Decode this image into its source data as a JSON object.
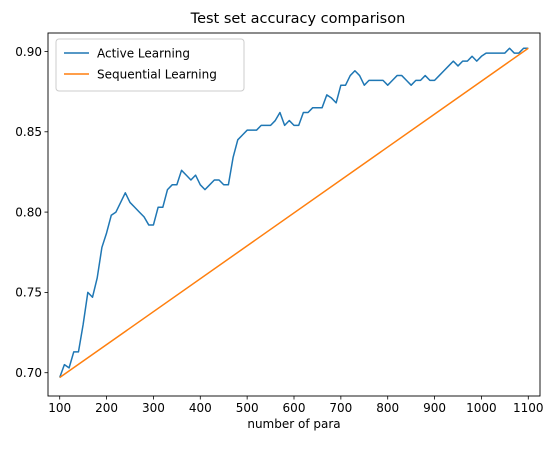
{
  "chart_data": {
    "type": "line",
    "title": "Test set accuracy comparison",
    "xlabel": "number of para",
    "ylabel": "",
    "xlim": [
      75,
      1125
    ],
    "ylim": [
      0.6855,
      0.9115
    ],
    "xticks": [
      100,
      200,
      300,
      400,
      500,
      600,
      700,
      800,
      900,
      1000,
      1100
    ],
    "yticks": [
      0.7,
      0.75,
      0.8,
      0.85,
      0.9
    ],
    "ytick_labels": [
      "0.70",
      "0.75",
      "0.80",
      "0.85",
      "0.90"
    ],
    "grid": false,
    "legend_position": "top-left",
    "series": [
      {
        "name": "Active Learning",
        "color": "#1f77b4",
        "x": [
          100,
          110,
          120,
          130,
          140,
          150,
          160,
          170,
          180,
          190,
          200,
          210,
          220,
          230,
          240,
          250,
          260,
          270,
          280,
          290,
          300,
          310,
          320,
          330,
          340,
          350,
          360,
          370,
          380,
          390,
          400,
          410,
          420,
          430,
          440,
          450,
          460,
          470,
          480,
          490,
          500,
          510,
          520,
          530,
          540,
          550,
          560,
          570,
          580,
          590,
          600,
          610,
          620,
          630,
          640,
          650,
          660,
          670,
          680,
          690,
          700,
          710,
          720,
          730,
          740,
          750,
          760,
          770,
          780,
          790,
          800,
          810,
          820,
          830,
          840,
          850,
          860,
          870,
          880,
          890,
          900,
          910,
          920,
          930,
          940,
          950,
          960,
          970,
          980,
          990,
          1000,
          1010,
          1020,
          1030,
          1040,
          1050,
          1060,
          1070,
          1080,
          1090,
          1100
        ],
        "y": [
          0.697,
          0.705,
          0.703,
          0.713,
          0.713,
          0.73,
          0.75,
          0.747,
          0.759,
          0.778,
          0.787,
          0.798,
          0.8,
          0.806,
          0.812,
          0.806,
          0.803,
          0.8,
          0.797,
          0.792,
          0.792,
          0.803,
          0.803,
          0.814,
          0.817,
          0.817,
          0.826,
          0.823,
          0.82,
          0.823,
          0.817,
          0.814,
          0.817,
          0.82,
          0.82,
          0.817,
          0.817,
          0.834,
          0.845,
          0.848,
          0.851,
          0.851,
          0.851,
          0.854,
          0.854,
          0.854,
          0.857,
          0.862,
          0.854,
          0.857,
          0.854,
          0.854,
          0.862,
          0.862,
          0.865,
          0.865,
          0.865,
          0.873,
          0.871,
          0.868,
          0.879,
          0.879,
          0.885,
          0.888,
          0.885,
          0.879,
          0.882,
          0.882,
          0.882,
          0.882,
          0.879,
          0.882,
          0.885,
          0.885,
          0.882,
          0.879,
          0.882,
          0.882,
          0.885,
          0.882,
          0.882,
          0.885,
          0.888,
          0.891,
          0.894,
          0.891,
          0.894,
          0.894,
          0.897,
          0.894,
          0.897,
          0.899,
          0.899,
          0.899,
          0.899,
          0.899,
          0.902,
          0.899,
          0.899,
          0.902,
          0.902
        ]
      },
      {
        "name": "Sequential Learning",
        "color": "#ff7f0e",
        "x": [
          100,
          1100
        ],
        "y": [
          0.697,
          0.902
        ]
      }
    ]
  }
}
